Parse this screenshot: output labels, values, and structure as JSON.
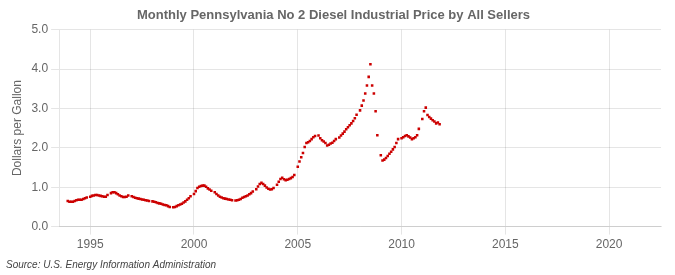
{
  "chart_data": {
    "type": "scatter",
    "title": "Monthly Pennsylvania No 2 Diesel Industrial Price by All Sellers",
    "ylabel": "Dollars per Gallon",
    "annotations": [
      "Source: U.S. Energy Information Administration"
    ],
    "color": "#CC0000",
    "marker": "square",
    "grid": true,
    "xlim": [
      1993.5,
      2022.5
    ],
    "ylim": [
      0.0,
      5.0
    ],
    "xticks": [
      1995,
      2000,
      2005,
      2010,
      2015,
      2020
    ],
    "yticks": [
      {
        "value": 0.0,
        "label": "0.0"
      },
      {
        "value": 1.0,
        "label": "1.0"
      },
      {
        "value": 2.0,
        "label": "2.0"
      },
      {
        "value": 3.0,
        "label": "3.0"
      },
      {
        "value": 4.0,
        "label": "4.0"
      },
      {
        "value": 5.0,
        "label": "5.0"
      }
    ],
    "x": [
      1993.917,
      1994.0,
      1994.083,
      1994.167,
      1994.25,
      1994.333,
      1994.417,
      1994.5,
      1994.583,
      1994.667,
      1994.75,
      1994.833,
      1995.0,
      1995.083,
      1995.167,
      1995.25,
      1995.333,
      1995.417,
      1995.5,
      1995.583,
      1995.667,
      1995.75,
      1995.833,
      1996.0,
      1996.083,
      1996.167,
      1996.25,
      1996.333,
      1996.417,
      1996.5,
      1996.583,
      1996.667,
      1996.75,
      1996.833,
      1997.0,
      1997.083,
      1997.167,
      1997.25,
      1997.333,
      1997.417,
      1997.5,
      1997.583,
      1997.667,
      1997.75,
      1997.833,
      1998.0,
      1998.083,
      1998.167,
      1998.25,
      1998.333,
      1998.417,
      1998.5,
      1998.583,
      1998.667,
      1998.75,
      1998.833,
      1999.0,
      1999.083,
      1999.167,
      1999.25,
      1999.333,
      1999.417,
      1999.5,
      1999.583,
      1999.667,
      1999.75,
      1999.833,
      2000.0,
      2000.083,
      2000.167,
      2000.25,
      2000.333,
      2000.417,
      2000.5,
      2000.583,
      2000.667,
      2000.75,
      2000.833,
      2001.0,
      2001.083,
      2001.167,
      2001.25,
      2001.333,
      2001.417,
      2001.5,
      2001.583,
      2001.667,
      2001.75,
      2001.833,
      2002.0,
      2002.083,
      2002.167,
      2002.25,
      2002.333,
      2002.417,
      2002.5,
      2002.583,
      2002.667,
      2002.75,
      2002.833,
      2003.0,
      2003.083,
      2003.167,
      2003.25,
      2003.333,
      2003.417,
      2003.5,
      2003.583,
      2003.667,
      2003.75,
      2003.833,
      2004.0,
      2004.083,
      2004.167,
      2004.25,
      2004.333,
      2004.417,
      2004.5,
      2004.583,
      2004.667,
      2004.75,
      2004.833,
      2005.0,
      2005.083,
      2005.167,
      2005.25,
      2005.333,
      2005.417,
      2005.5,
      2005.583,
      2005.667,
      2005.75,
      2005.833,
      2006.0,
      2006.083,
      2006.167,
      2006.25,
      2006.333,
      2006.417,
      2006.5,
      2006.583,
      2006.667,
      2006.75,
      2006.833,
      2007.0,
      2007.083,
      2007.167,
      2007.25,
      2007.333,
      2007.417,
      2007.5,
      2007.583,
      2007.667,
      2007.75,
      2007.833,
      2008.0,
      2008.083,
      2008.167,
      2008.25,
      2008.333,
      2008.417,
      2008.5,
      2008.583,
      2008.667,
      2008.75,
      2008.833,
      2009.0,
      2009.083,
      2009.167,
      2009.25,
      2009.333,
      2009.417,
      2009.5,
      2009.583,
      2009.667,
      2009.75,
      2009.833,
      2010.0,
      2010.083,
      2010.167,
      2010.25,
      2010.333,
      2010.417,
      2010.5,
      2010.583,
      2010.667,
      2010.75,
      2010.833,
      2011.0,
      2011.083,
      2011.167,
      2011.25,
      2011.333,
      2011.417,
      2011.5,
      2011.583,
      2011.667,
      2011.75,
      2011.833
    ],
    "values": [
      0.65,
      0.63,
      0.63,
      0.63,
      0.65,
      0.67,
      0.68,
      0.68,
      0.68,
      0.7,
      0.72,
      0.74,
      0.76,
      0.78,
      0.79,
      0.8,
      0.8,
      0.79,
      0.78,
      0.77,
      0.76,
      0.76,
      0.8,
      0.85,
      0.87,
      0.87,
      0.85,
      0.82,
      0.79,
      0.77,
      0.75,
      0.75,
      0.76,
      0.79,
      0.77,
      0.75,
      0.73,
      0.72,
      0.71,
      0.7,
      0.69,
      0.68,
      0.67,
      0.66,
      0.65,
      0.64,
      0.63,
      0.62,
      0.6,
      0.59,
      0.58,
      0.56,
      0.55,
      0.54,
      0.52,
      0.5,
      0.49,
      0.5,
      0.52,
      0.54,
      0.56,
      0.58,
      0.61,
      0.64,
      0.68,
      0.72,
      0.77,
      0.83,
      0.9,
      0.98,
      1.01,
      1.03,
      1.04,
      1.04,
      1.01,
      0.97,
      0.94,
      0.91,
      0.87,
      0.83,
      0.79,
      0.76,
      0.74,
      0.72,
      0.71,
      0.7,
      0.69,
      0.68,
      0.67,
      0.66,
      0.67,
      0.68,
      0.7,
      0.73,
      0.75,
      0.77,
      0.79,
      0.82,
      0.85,
      0.89,
      0.95,
      1.02,
      1.08,
      1.11,
      1.08,
      1.04,
      0.99,
      0.96,
      0.94,
      0.95,
      0.98,
      1.06,
      1.14,
      1.21,
      1.24,
      1.2,
      1.18,
      1.19,
      1.21,
      1.23,
      1.26,
      1.31,
      1.52,
      1.65,
      1.76,
      1.87,
      2.02,
      2.12,
      2.14,
      2.17,
      2.22,
      2.27,
      2.3,
      2.31,
      2.24,
      2.19,
      2.16,
      2.12,
      2.06,
      2.08,
      2.11,
      2.13,
      2.17,
      2.22,
      2.26,
      2.31,
      2.36,
      2.41,
      2.47,
      2.52,
      2.57,
      2.62,
      2.68,
      2.75,
      2.84,
      2.95,
      3.07,
      3.2,
      3.38,
      3.58,
      3.8,
      4.12,
      3.58,
      3.38,
      2.93,
      2.32,
      1.81,
      1.68,
      1.7,
      1.74,
      1.79,
      1.85,
      1.9,
      1.96,
      2.02,
      2.12,
      2.22,
      2.24,
      2.27,
      2.3,
      2.32,
      2.29,
      2.26,
      2.22,
      2.24,
      2.27,
      2.32,
      2.48,
      2.73,
      2.93,
      3.02,
      2.83,
      2.78,
      2.74,
      2.7,
      2.67,
      2.62,
      2.64,
      2.6
    ]
  }
}
